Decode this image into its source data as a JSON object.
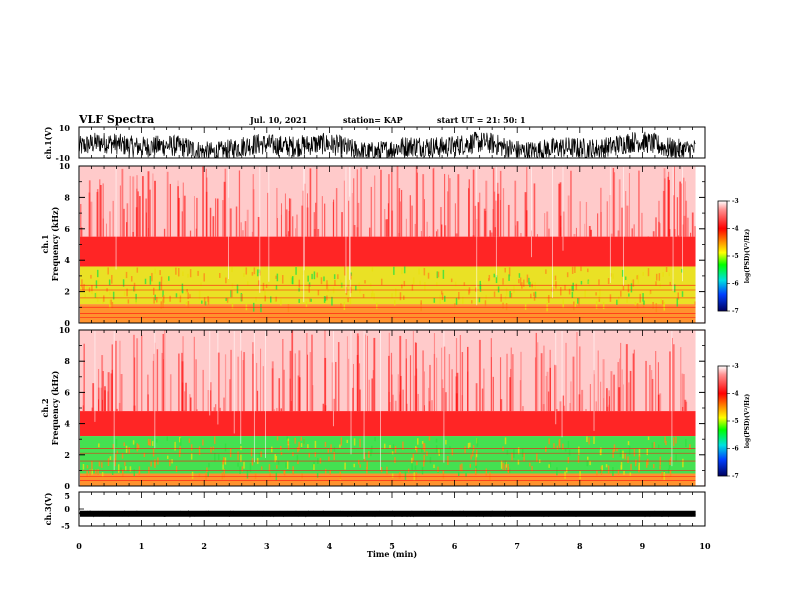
{
  "header": {
    "title": "VLF Spectra",
    "date": "Jul. 10, 2021",
    "station": "station= KAP",
    "start": "start UT = 21: 50: 1"
  },
  "chart_data": [
    {
      "type": "line",
      "name": "ch1-waveform",
      "ylabel": "ch.1(V)",
      "ylim": [
        -10,
        10
      ],
      "yticks": [
        "10",
        "-10"
      ],
      "xlim": [
        0,
        10
      ]
    },
    {
      "type": "heatmap",
      "name": "ch1-spectrogram",
      "ylabel": "ch.1\nFrequency (kHz)",
      "ylim": [
        0,
        10
      ],
      "yticks": [
        "0",
        "2",
        "4",
        "6",
        "8",
        "10"
      ],
      "colorbar": {
        "label": "log(PSD)(V²/Hz)",
        "range": [
          -7,
          -3
        ],
        "ticks": [
          "-3",
          "-4",
          "-5",
          "-6",
          "-7"
        ]
      },
      "bands": [
        {
          "from_khz": 0.0,
          "to_khz": 1.2,
          "level": "orange"
        },
        {
          "from_khz": 1.2,
          "to_khz": 3.6,
          "level": "yellow-green"
        },
        {
          "from_khz": 3.6,
          "to_khz": 5.5,
          "level": "red"
        },
        {
          "from_khz": 5.5,
          "to_khz": 10.0,
          "level": "light-red"
        }
      ]
    },
    {
      "type": "heatmap",
      "name": "ch2-spectrogram",
      "ylabel": "ch.2\nFrequency (kHz)",
      "ylim": [
        0,
        10
      ],
      "yticks": [
        "0",
        "2",
        "4",
        "6",
        "8",
        "10"
      ],
      "colorbar": {
        "label": "log(PSD)(V²/Hz)",
        "range": [
          -7,
          -3
        ],
        "ticks": [
          "-3",
          "-4",
          "-5",
          "-6",
          "-7"
        ]
      },
      "bands": [
        {
          "from_khz": 0.0,
          "to_khz": 0.8,
          "level": "orange"
        },
        {
          "from_khz": 0.8,
          "to_khz": 3.2,
          "level": "green"
        },
        {
          "from_khz": 3.2,
          "to_khz": 4.8,
          "level": "red"
        },
        {
          "from_khz": 4.8,
          "to_khz": 10.0,
          "level": "light-red"
        }
      ]
    },
    {
      "type": "line",
      "name": "ch3-waveform",
      "ylabel": "ch.3(V)",
      "ylim": [
        -5,
        5
      ],
      "yticks": [
        "5",
        "0",
        "-5"
      ],
      "xlim": [
        0,
        10
      ],
      "level": -1.4
    }
  ],
  "xaxis": {
    "label": "Time (min)",
    "ticks": [
      "0",
      "1",
      "2",
      "3",
      "4",
      "5",
      "6",
      "7",
      "8",
      "9",
      "10"
    ]
  },
  "colors": {
    "red": "#ff1010",
    "light_red": "#ffb0b0",
    "orange": "#ff8a1a",
    "yellow": "#e8e010",
    "green": "#30e040",
    "trace": "#000000"
  }
}
